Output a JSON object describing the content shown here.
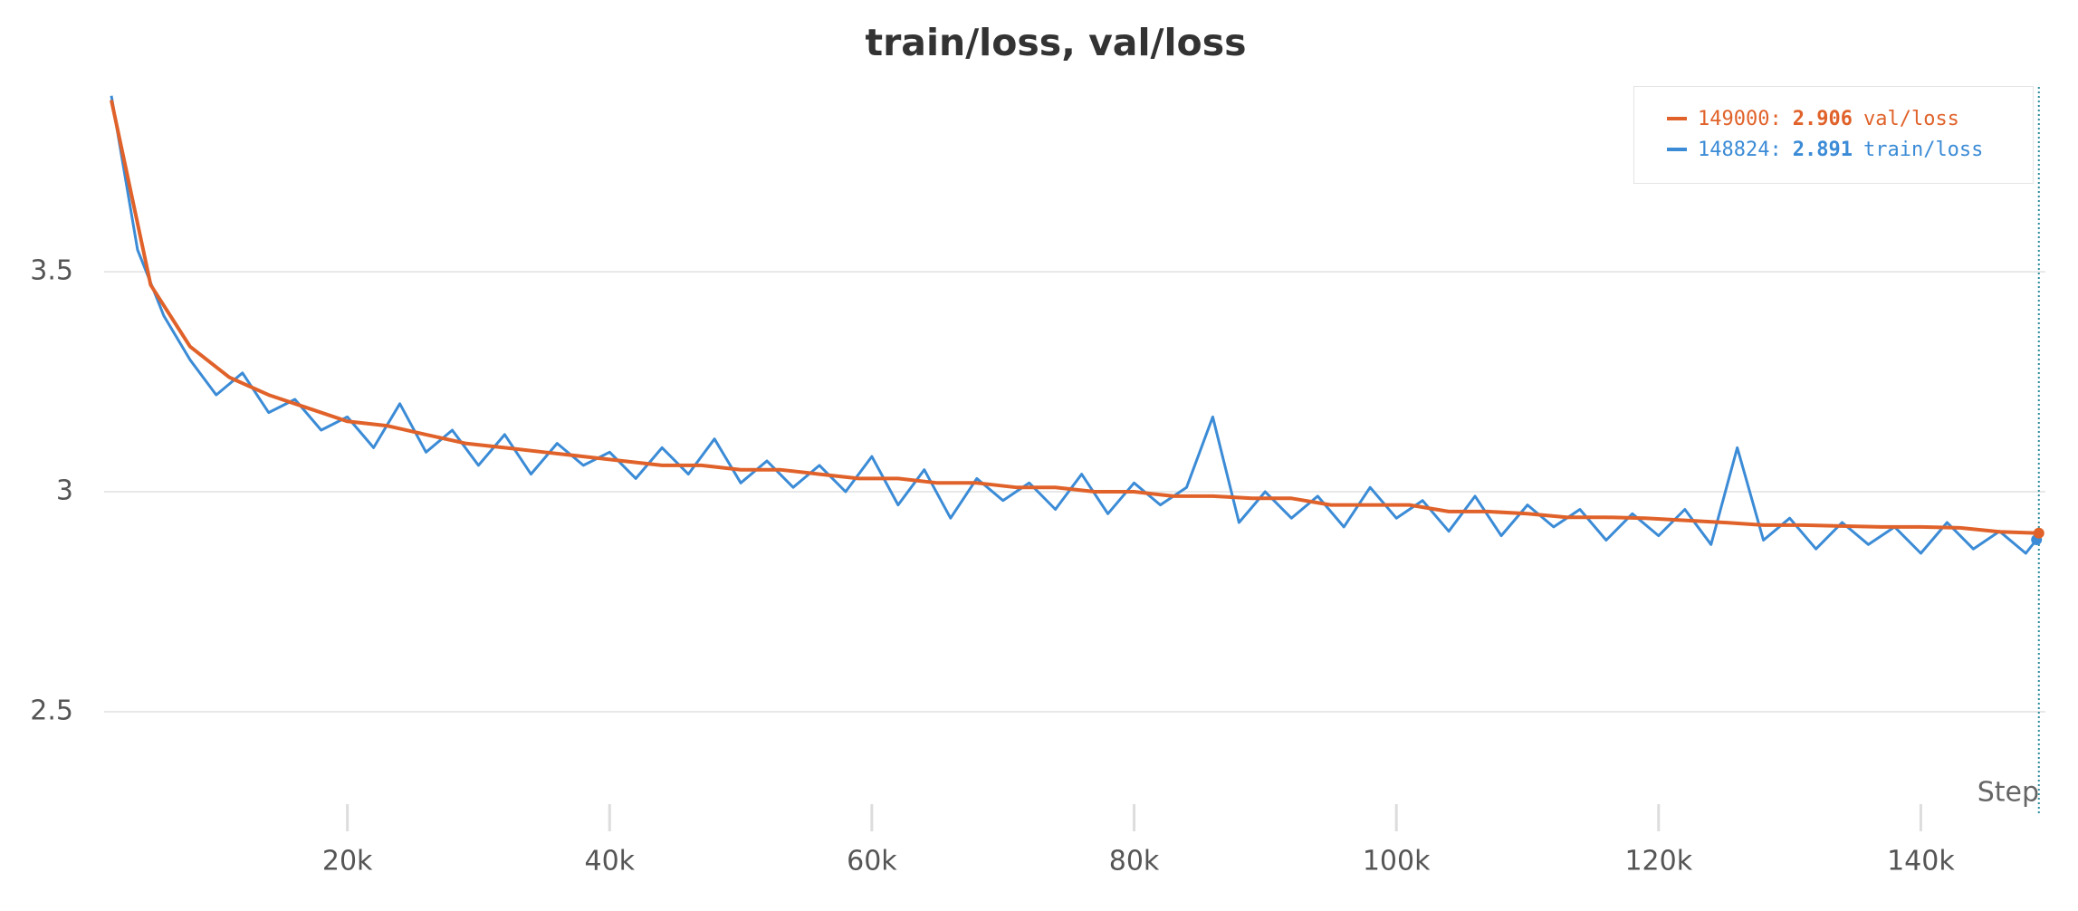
{
  "chart_data": {
    "type": "line",
    "title": "train/loss, val/loss",
    "x_label": "Step",
    "xlim": [
      1450,
      149500
    ],
    "ylim": [
      2.29,
      3.92
    ],
    "xticks": [
      {
        "value": 20000,
        "label": "20k"
      },
      {
        "value": 40000,
        "label": "40k"
      },
      {
        "value": 60000,
        "label": "60k"
      },
      {
        "value": 80000,
        "label": "80k"
      },
      {
        "value": 100000,
        "label": "100k"
      },
      {
        "value": 120000,
        "label": "120k"
      },
      {
        "value": 140000,
        "label": "140k"
      }
    ],
    "yticks": [
      2.5,
      3,
      3.5
    ],
    "grid": true,
    "legend_position": "upper right",
    "series": [
      {
        "name": "val/loss",
        "color": "#e0622a",
        "x": [
          2000,
          5000,
          8000,
          11000,
          14000,
          17000,
          20000,
          23000,
          26000,
          29000,
          32000,
          35000,
          38000,
          41000,
          44000,
          47000,
          50000,
          53000,
          56000,
          59000,
          62000,
          65000,
          68000,
          71000,
          74000,
          77000,
          80000,
          83000,
          86000,
          89000,
          92000,
          95000,
          98000,
          101000,
          104000,
          107000,
          110000,
          113000,
          116000,
          119000,
          122000,
          125000,
          128000,
          131000,
          134000,
          137000,
          140000,
          143000,
          146000,
          149000
        ],
        "values": [
          3.89,
          3.47,
          3.33,
          3.26,
          3.22,
          3.19,
          3.16,
          3.15,
          3.13,
          3.11,
          3.1,
          3.09,
          3.08,
          3.07,
          3.06,
          3.06,
          3.05,
          3.05,
          3.04,
          3.03,
          3.03,
          3.02,
          3.02,
          3.01,
          3.01,
          3.0,
          3.0,
          2.99,
          2.99,
          2.985,
          2.985,
          2.97,
          2.97,
          2.97,
          2.955,
          2.955,
          2.95,
          2.942,
          2.942,
          2.94,
          2.935,
          2.93,
          2.924,
          2.924,
          2.922,
          2.92,
          2.92,
          2.918,
          2.909,
          2.906
        ]
      },
      {
        "name": "train/loss",
        "color": "#3b8bd6",
        "x": [
          2000,
          4000,
          6000,
          8000,
          10000,
          12000,
          14000,
          16000,
          18000,
          20000,
          22000,
          24000,
          26000,
          28000,
          30000,
          32000,
          34000,
          36000,
          38000,
          40000,
          42000,
          44000,
          46000,
          48000,
          50000,
          52000,
          54000,
          56000,
          58000,
          60000,
          62000,
          64000,
          66000,
          68000,
          70000,
          72000,
          74000,
          76000,
          78000,
          80000,
          82000,
          84000,
          86000,
          88000,
          90000,
          92000,
          94000,
          96000,
          98000,
          100000,
          102000,
          104000,
          106000,
          108000,
          110000,
          112000,
          114000,
          116000,
          118000,
          120000,
          122000,
          124000,
          126000,
          128000,
          130000,
          132000,
          134000,
          136000,
          138000,
          140000,
          142000,
          144000,
          146000,
          148000,
          148824
        ],
        "values": [
          3.9,
          3.55,
          3.4,
          3.3,
          3.22,
          3.27,
          3.18,
          3.21,
          3.14,
          3.17,
          3.1,
          3.2,
          3.09,
          3.14,
          3.06,
          3.13,
          3.04,
          3.11,
          3.06,
          3.09,
          3.03,
          3.1,
          3.04,
          3.12,
          3.02,
          3.07,
          3.01,
          3.06,
          3.0,
          3.08,
          2.97,
          3.05,
          2.94,
          3.03,
          2.98,
          3.02,
          2.96,
          3.04,
          2.95,
          3.02,
          2.97,
          3.01,
          3.17,
          2.93,
          3.0,
          2.94,
          2.99,
          2.92,
          3.01,
          2.94,
          2.98,
          2.91,
          2.99,
          2.9,
          2.97,
          2.92,
          2.96,
          2.89,
          2.95,
          2.9,
          2.96,
          2.88,
          3.1,
          2.89,
          2.94,
          2.87,
          2.93,
          2.88,
          2.92,
          2.86,
          2.93,
          2.87,
          2.91,
          2.86,
          2.891
        ]
      }
    ]
  }
}
